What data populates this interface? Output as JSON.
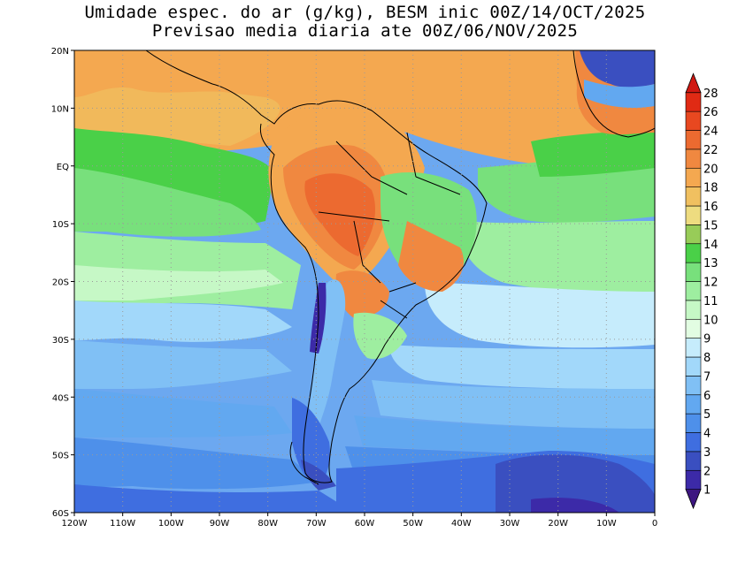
{
  "title": {
    "line1": "Umidade espec. do ar (g/kg), BESM inic 00Z/14/OCT/2025",
    "line2": "Previsao media diaria ate 00Z/06/NOV/2025"
  },
  "map": {
    "lon_range": [
      -120,
      0
    ],
    "lat_range": [
      -60,
      20
    ],
    "lon_ticks": [
      "120W",
      "110W",
      "100W",
      "90W",
      "80W",
      "70W",
      "60W",
      "50W",
      "40W",
      "30W",
      "20W",
      "10W",
      "0"
    ],
    "lat_ticks": [
      "20N",
      "10N",
      "EQ",
      "10S",
      "20S",
      "30S",
      "40S",
      "50S",
      "60S"
    ],
    "grid": "dotted"
  },
  "colorbar": {
    "levels": [
      "1",
      "2",
      "3",
      "4",
      "5",
      "6",
      "7",
      "8",
      "9",
      "10",
      "11",
      "12",
      "13",
      "14",
      "15",
      "16",
      "18",
      "20",
      "22",
      "24",
      "26",
      "28"
    ],
    "colors": [
      "#3d1680",
      "#3c2aa8",
      "#3a4fc0",
      "#3f6ee0",
      "#4e90ea",
      "#62a8f0",
      "#80c0f5",
      "#a2d8fa",
      "#c6ecfc",
      "#e2fde2",
      "#c6f8c6",
      "#9eeea0",
      "#78e07c",
      "#4ad048",
      "#98cc58",
      "#eedc80",
      "#f0c060",
      "#f4a850",
      "#f08840",
      "#ec6a30",
      "#e84820",
      "#e02a14",
      "#d01812"
    ]
  }
}
